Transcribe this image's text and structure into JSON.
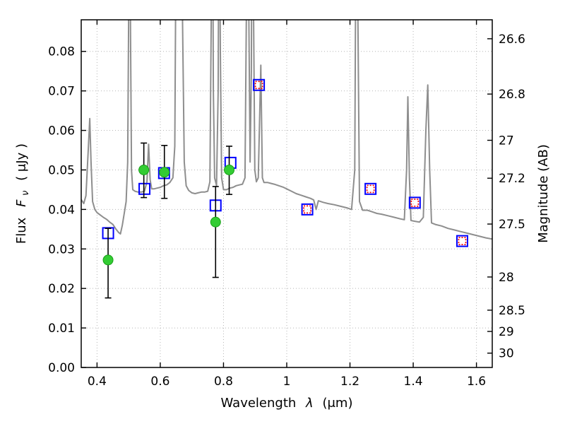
{
  "figure": {
    "background": "#ffffff"
  },
  "chart_data": {
    "type": "line+scatter",
    "title": "",
    "xlabel": {
      "prefix": "Wavelength",
      "symbol": "λ",
      "suffix": "(μm)"
    },
    "ylabel_left": {
      "prefix": "Flux",
      "symbol": "F",
      "subscript": "ν",
      "suffix": "( μJy )"
    },
    "ylabel_right": "Magnitude (AB)",
    "xlim": [
      0.35,
      1.65
    ],
    "ylim": [
      0.0,
      0.088
    ],
    "xticks": [
      0.4,
      0.6,
      0.8,
      1.0,
      1.2,
      1.4,
      1.6
    ],
    "xtick_labels": [
      "0.4",
      "0.6",
      "0.8",
      "1",
      "1.2",
      "1.4",
      "1.6"
    ],
    "yticks_left": [
      0.0,
      0.01,
      0.02,
      0.03,
      0.04,
      0.05,
      0.06,
      0.07,
      0.08
    ],
    "ytick_left_labels": [
      "0.00",
      "0.01",
      "0.02",
      "0.03",
      "0.04",
      "0.05",
      "0.06",
      "0.07",
      "0.08"
    ],
    "yticks_right": [
      {
        "label": "26.6",
        "flux": 0.0832
      },
      {
        "label": "26.8",
        "flux": 0.0692
      },
      {
        "label": "27",
        "flux": 0.0575
      },
      {
        "label": "27.2",
        "flux": 0.0479
      },
      {
        "label": "27.5",
        "flux": 0.0363
      },
      {
        "label": "28",
        "flux": 0.0229
      },
      {
        "label": "28.5",
        "flux": 0.0145
      },
      {
        "label": "29",
        "flux": 0.00912
      },
      {
        "label": "30",
        "flux": 0.00363
      }
    ],
    "grid": {
      "show": true,
      "style": "dotted",
      "color": "#b5b5b5"
    },
    "series": [
      {
        "name": "model-spectrum",
        "type": "line",
        "color": "#8e8e8e",
        "width": 2,
        "points": [
          [
            0.35,
            0.0425
          ],
          [
            0.358,
            0.0415
          ],
          [
            0.365,
            0.0435
          ],
          [
            0.372,
            0.0545
          ],
          [
            0.377,
            0.063
          ],
          [
            0.381,
            0.052
          ],
          [
            0.386,
            0.042
          ],
          [
            0.393,
            0.04
          ],
          [
            0.4,
            0.0392
          ],
          [
            0.41,
            0.0386
          ],
          [
            0.42,
            0.038
          ],
          [
            0.43,
            0.0375
          ],
          [
            0.44,
            0.0368
          ],
          [
            0.45,
            0.0362
          ],
          [
            0.46,
            0.035
          ],
          [
            0.468,
            0.0342
          ],
          [
            0.474,
            0.0338
          ],
          [
            0.48,
            0.036
          ],
          [
            0.486,
            0.039
          ],
          [
            0.492,
            0.042
          ],
          [
            0.497,
            0.052
          ],
          [
            0.5,
            0.09
          ],
          [
            0.503,
            0.13
          ],
          [
            0.506,
            0.085
          ],
          [
            0.509,
            0.05
          ],
          [
            0.513,
            0.045
          ],
          [
            0.52,
            0.0446
          ],
          [
            0.53,
            0.0444
          ],
          [
            0.54,
            0.0444
          ],
          [
            0.55,
            0.0446
          ],
          [
            0.558,
            0.047
          ],
          [
            0.563,
            0.0565
          ],
          [
            0.568,
            0.0475
          ],
          [
            0.573,
            0.0452
          ],
          [
            0.58,
            0.0452
          ],
          [
            0.59,
            0.0454
          ],
          [
            0.6,
            0.0456
          ],
          [
            0.61,
            0.046
          ],
          [
            0.62,
            0.0462
          ],
          [
            0.63,
            0.0468
          ],
          [
            0.64,
            0.048
          ],
          [
            0.646,
            0.056
          ],
          [
            0.65,
            0.11
          ],
          [
            0.654,
            0.14
          ],
          [
            0.659,
            0.12
          ],
          [
            0.664,
            0.14
          ],
          [
            0.67,
            0.09
          ],
          [
            0.676,
            0.052
          ],
          [
            0.682,
            0.046
          ],
          [
            0.69,
            0.0448
          ],
          [
            0.7,
            0.0442
          ],
          [
            0.71,
            0.044
          ],
          [
            0.72,
            0.0442
          ],
          [
            0.73,
            0.0444
          ],
          [
            0.74,
            0.0444
          ],
          [
            0.75,
            0.0446
          ],
          [
            0.757,
            0.047
          ],
          [
            0.762,
            0.095
          ],
          [
            0.765,
            0.13
          ],
          [
            0.768,
            0.07
          ],
          [
            0.772,
            0.048
          ],
          [
            0.778,
            0.046
          ],
          [
            0.783,
            0.07
          ],
          [
            0.786,
            0.13
          ],
          [
            0.79,
            0.08
          ],
          [
            0.794,
            0.048
          ],
          [
            0.8,
            0.045
          ],
          [
            0.81,
            0.045
          ],
          [
            0.82,
            0.0454
          ],
          [
            0.83,
            0.0456
          ],
          [
            0.84,
            0.046
          ],
          [
            0.85,
            0.0462
          ],
          [
            0.86,
            0.0464
          ],
          [
            0.868,
            0.048
          ],
          [
            0.873,
            0.095
          ],
          [
            0.876,
            0.14
          ],
          [
            0.88,
            0.09
          ],
          [
            0.884,
            0.052
          ],
          [
            0.888,
            0.075
          ],
          [
            0.891,
            0.14
          ],
          [
            0.895,
            0.09
          ],
          [
            0.899,
            0.05
          ],
          [
            0.904,
            0.047
          ],
          [
            0.91,
            0.048
          ],
          [
            0.918,
            0.0765
          ],
          [
            0.923,
            0.048
          ],
          [
            0.928,
            0.0468
          ],
          [
            0.94,
            0.0468
          ],
          [
            0.95,
            0.0466
          ],
          [
            0.96,
            0.0464
          ],
          [
            0.975,
            0.046
          ],
          [
            0.99,
            0.0456
          ],
          [
            1.0,
            0.0452
          ],
          [
            1.015,
            0.0446
          ],
          [
            1.03,
            0.044
          ],
          [
            1.045,
            0.0436
          ],
          [
            1.06,
            0.0432
          ],
          [
            1.075,
            0.0428
          ],
          [
            1.085,
            0.0424
          ],
          [
            1.093,
            0.04
          ],
          [
            1.1,
            0.0422
          ],
          [
            1.115,
            0.0418
          ],
          [
            1.13,
            0.0415
          ],
          [
            1.15,
            0.0412
          ],
          [
            1.17,
            0.0408
          ],
          [
            1.19,
            0.0404
          ],
          [
            1.205,
            0.04
          ],
          [
            1.215,
            0.05
          ],
          [
            1.22,
            0.13
          ],
          [
            1.225,
            0.09
          ],
          [
            1.23,
            0.042
          ],
          [
            1.24,
            0.0398
          ],
          [
            1.255,
            0.0398
          ],
          [
            1.27,
            0.0394
          ],
          [
            1.285,
            0.039
          ],
          [
            1.3,
            0.0388
          ],
          [
            1.32,
            0.0384
          ],
          [
            1.34,
            0.038
          ],
          [
            1.36,
            0.0376
          ],
          [
            1.372,
            0.0374
          ],
          [
            1.379,
            0.05
          ],
          [
            1.383,
            0.0685
          ],
          [
            1.388,
            0.048
          ],
          [
            1.393,
            0.0372
          ],
          [
            1.405,
            0.037
          ],
          [
            1.42,
            0.0368
          ],
          [
            1.432,
            0.038
          ],
          [
            1.44,
            0.06
          ],
          [
            1.446,
            0.0715
          ],
          [
            1.452,
            0.05
          ],
          [
            1.458,
            0.0366
          ],
          [
            1.47,
            0.0362
          ],
          [
            1.49,
            0.0358
          ],
          [
            1.51,
            0.0352
          ],
          [
            1.53,
            0.0348
          ],
          [
            1.55,
            0.0344
          ],
          [
            1.57,
            0.034
          ],
          [
            1.59,
            0.0336
          ],
          [
            1.61,
            0.0332
          ],
          [
            1.63,
            0.0328
          ],
          [
            1.65,
            0.0325
          ]
        ]
      },
      {
        "name": "model-photometry-squares",
        "type": "scatter",
        "marker": "square",
        "edge": "#0000ff",
        "fill": "none",
        "size": 7.5,
        "stroke_width": 2,
        "dashed": false,
        "points": [
          {
            "x": 0.435,
            "y": 0.034
          },
          {
            "x": 0.55,
            "y": 0.0452
          },
          {
            "x": 0.612,
            "y": 0.0492
          },
          {
            "x": 0.775,
            "y": 0.041
          },
          {
            "x": 0.822,
            "y": 0.0518
          },
          {
            "x": 0.912,
            "y": 0.0715
          },
          {
            "x": 1.065,
            "y": 0.04
          },
          {
            "x": 1.265,
            "y": 0.0452
          },
          {
            "x": 1.405,
            "y": 0.0417
          },
          {
            "x": 1.555,
            "y": 0.032
          }
        ]
      },
      {
        "name": "observed-photometry-circles",
        "type": "scatter",
        "marker": "circle",
        "fill": "#33cc33",
        "edge": "#19a019",
        "size": 7,
        "error_color": "#000000",
        "points": [
          {
            "x": 0.435,
            "y": 0.0272,
            "yerr_plus": 0.008,
            "yerr_minus": 0.0096
          },
          {
            "x": 0.548,
            "y": 0.05,
            "yerr_plus": 0.0068,
            "yerr_minus": 0.007
          },
          {
            "x": 0.613,
            "y": 0.0494,
            "yerr_plus": 0.0068,
            "yerr_minus": 0.0066
          },
          {
            "x": 0.775,
            "y": 0.0368,
            "yerr_plus": 0.009,
            "yerr_minus": 0.014
          },
          {
            "x": 0.818,
            "y": 0.05,
            "yerr_plus": 0.006,
            "yerr_minus": 0.0062
          }
        ]
      },
      {
        "name": "ir-photometry-squares",
        "type": "scatter",
        "marker": "square",
        "edge": "#ff0000",
        "fill": "none",
        "size": 5,
        "stroke_width": 1.7,
        "dashed": true,
        "points": [
          {
            "x": 0.912,
            "y": 0.0715
          },
          {
            "x": 1.065,
            "y": 0.04
          },
          {
            "x": 1.265,
            "y": 0.0452
          },
          {
            "x": 1.405,
            "y": 0.0417
          },
          {
            "x": 1.555,
            "y": 0.032
          }
        ]
      }
    ]
  }
}
